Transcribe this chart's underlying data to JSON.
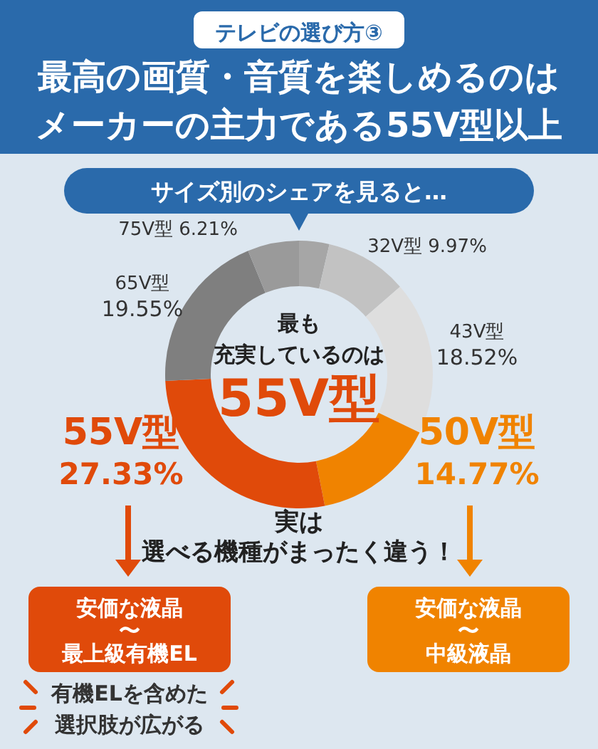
{
  "chart_data": {
    "type": "donut",
    "subtitle": "テレビの選び方③",
    "title": "最高の画質・音質を楽しめるのはメーカーの主力である55V型以上",
    "categories": [
      null,
      "32V型",
      "43V型",
      "50V型",
      "55V型",
      "65V型",
      "75V型"
    ],
    "values": [
      3.65,
      9.97,
      18.52,
      14.77,
      27.33,
      19.55,
      6.21
    ],
    "value_labels": [
      null,
      "9.97%",
      "18.52%",
      "14.77%",
      "27.33%",
      "19.55%",
      "6.21%"
    ],
    "colors": [
      "#a6a6a6",
      "#c2c2c2",
      "#dedede",
      "#f08300",
      "#e04a0a",
      "#7f7f7f",
      "#9a9a9a"
    ],
    "annotations": [
      "サイズ別のシェアを見ると…",
      "最も充実しているのは",
      "55V型",
      "実は選べる機種がまったく違う！",
      "安価な液晶〜最上級有機EL",
      "安価な液晶〜中級液晶",
      "有機ELを含めた選択肢が広がる"
    ]
  }
}
